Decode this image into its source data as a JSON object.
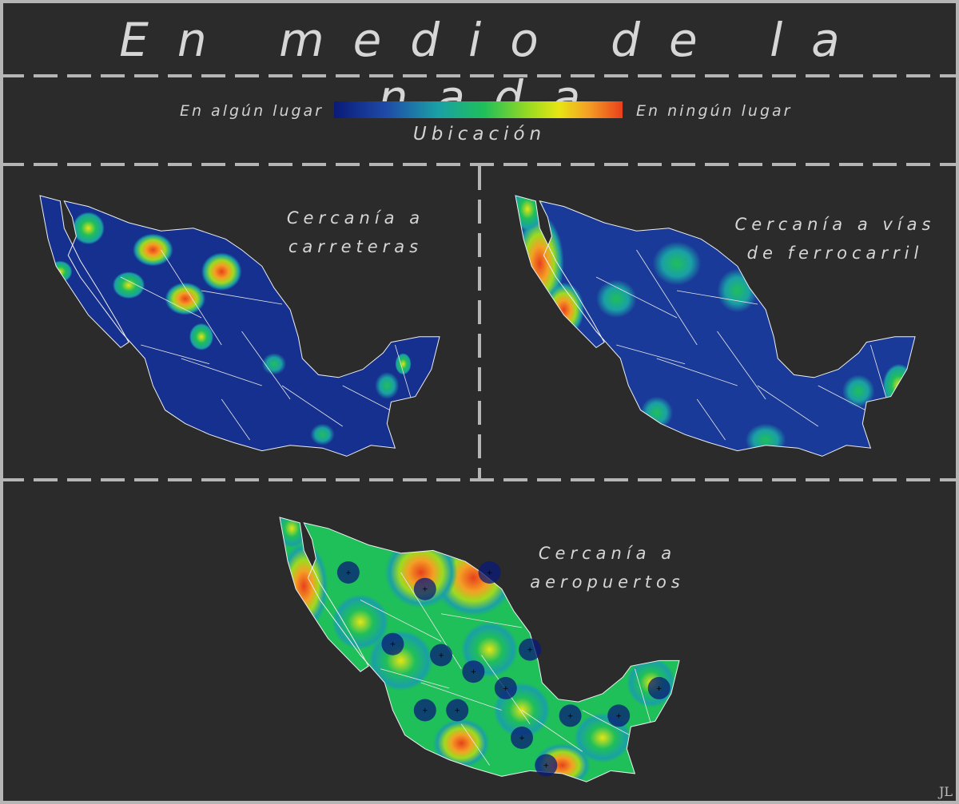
{
  "title": "En medio de la nada",
  "legend": {
    "left_label": "En algún lugar",
    "right_label": "En ningún lugar",
    "title": "Ubicación",
    "colors": [
      "#0a1a78",
      "#1f4aa8",
      "#1aa0a6",
      "#1fbf5a",
      "#9ddb1f",
      "#e8e514",
      "#f4a024",
      "#e8401c"
    ]
  },
  "panels": [
    {
      "label_line1": "Cercanía a",
      "label_line2": "carreteras",
      "map_icon": "mexico-map-roads"
    },
    {
      "label_line1": "Cercanía a vías",
      "label_line2": "de ferrocarril",
      "map_icon": "mexico-map-railways"
    },
    {
      "label_line1": "Cercanía a",
      "label_line2": "aeropuertos",
      "map_icon": "mexico-map-airports"
    }
  ],
  "signature": "JL"
}
